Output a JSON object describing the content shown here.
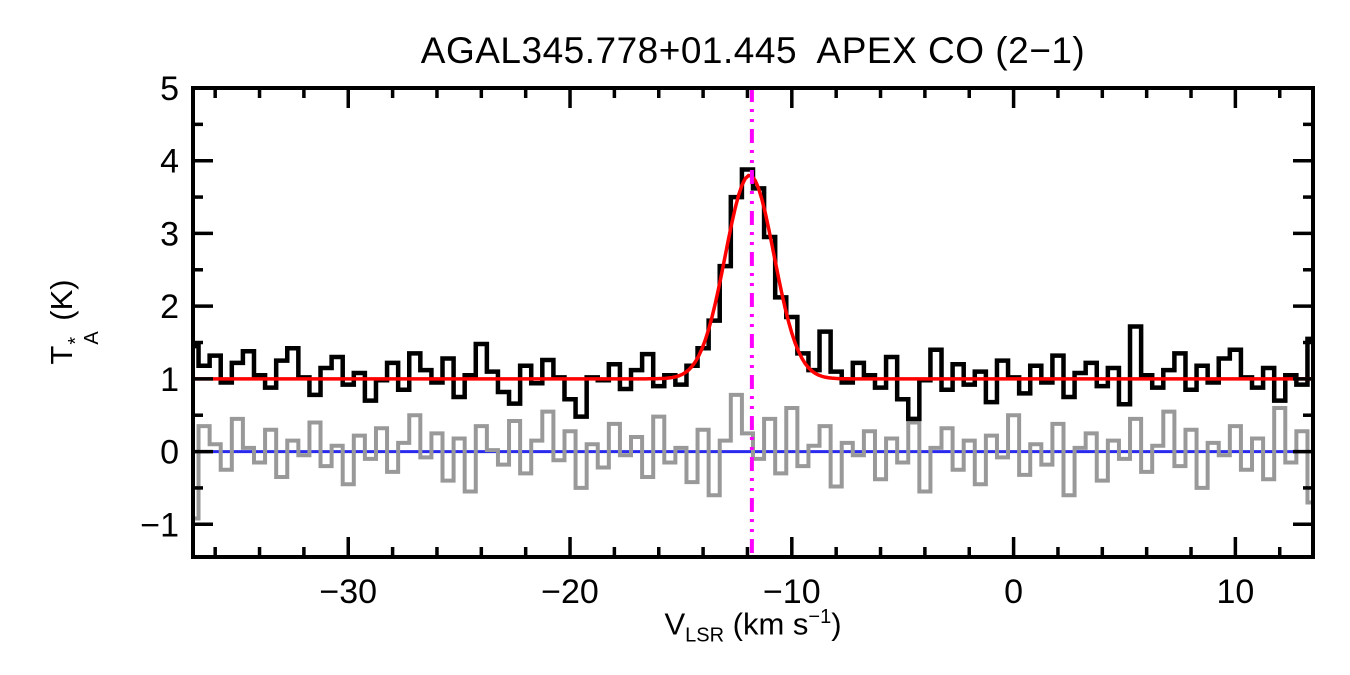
{
  "chart_data": {
    "type": "line",
    "title": "AGAL345.778+01.445  APEX CO (2−1)",
    "xlabel": "VLSR (km s−1)",
    "ylabel": "TA* (K)",
    "xlabel_parts": {
      "pre": "V",
      "sub": "LSR",
      "mid": " (km s",
      "sup": "−1",
      "post": ")"
    },
    "ylabel_parts": {
      "pre": "T",
      "sup": "*",
      "sub": "A",
      "post": " (K)"
    },
    "x_range": [
      -37,
      13.5
    ],
    "y_range": [
      -1.45,
      5
    ],
    "grid": false,
    "legend": false,
    "x_ticks": [
      {
        "value": -30,
        "label": "−30"
      },
      {
        "value": -20,
        "label": "−20"
      },
      {
        "value": -10,
        "label": "−10"
      },
      {
        "value": 0,
        "label": "0"
      },
      {
        "value": 10,
        "label": "10"
      }
    ],
    "y_ticks": [
      {
        "value": -1,
        "label": "−1"
      },
      {
        "value": 0,
        "label": "0"
      },
      {
        "value": 1,
        "label": "1"
      },
      {
        "value": 2,
        "label": "2"
      },
      {
        "value": 3,
        "label": "3"
      },
      {
        "value": 4,
        "label": "4"
      },
      {
        "value": 5,
        "label": "5"
      }
    ],
    "x_minor_step": 2,
    "y_minor_step": 0.5,
    "spectrum": {
      "name": "observed-spectrum",
      "color": "#000000",
      "x_start": -37,
      "x_step": 0.5,
      "values": [
        1.45,
        1.18,
        1.32,
        0.95,
        1.22,
        1.38,
        1.05,
        0.88,
        1.25,
        1.42,
        1.02,
        0.78,
        1.15,
        1.3,
        0.92,
        1.08,
        0.7,
        0.98,
        1.22,
        0.85,
        1.35,
        1.12,
        0.95,
        1.28,
        0.75,
        1.05,
        1.48,
        1.1,
        0.82,
        0.66,
        1.18,
        0.94,
        1.26,
        1.02,
        0.72,
        0.48,
        1.02,
        0.98,
        1.2,
        0.86,
        1.12,
        1.34,
        0.9,
        1.05,
        0.92,
        1.18,
        1.42,
        1.8,
        2.55,
        3.5,
        3.88,
        3.62,
        2.95,
        2.12,
        1.85,
        1.35,
        1.12,
        1.65,
        1.1,
        0.95,
        1.22,
        1.05,
        0.88,
        1.3,
        0.72,
        0.45,
        0.98,
        1.4,
        0.85,
        1.2,
        0.92,
        1.1,
        0.68,
        1.25,
        1.02,
        0.8,
        1.18,
        0.95,
        1.32,
        0.75,
        1.08,
        1.22,
        0.9,
        1.15,
        0.65,
        1.72,
        1.05,
        0.88,
        1.12,
        1.35,
        0.85,
        1.18,
        0.95,
        1.28,
        1.4,
        1.02,
        0.88,
        1.15,
        0.7,
        1.05,
        0.92,
        1.55
      ]
    },
    "residual": {
      "name": "residual-spectrum",
      "color": "#999999",
      "x_start": -37,
      "x_step": 0.5,
      "values": [
        -0.92,
        0.35,
        0.1,
        -0.25,
        0.45,
        0.05,
        -0.15,
        0.3,
        -0.35,
        0.15,
        -0.05,
        0.4,
        -0.2,
        0.08,
        -0.45,
        0.22,
        -0.1,
        0.32,
        -0.28,
        0.12,
        0.5,
        -0.08,
        0.25,
        -0.4,
        0.18,
        -0.55,
        0.35,
        0.02,
        -0.18,
        0.42,
        -0.3,
        0.15,
        0.55,
        -0.12,
        0.28,
        -0.5,
        0.1,
        -0.22,
        0.38,
        -0.05,
        0.2,
        -0.35,
        0.48,
        -0.15,
        0.05,
        -0.42,
        0.3,
        -0.6,
        0.15,
        0.78,
        0.25,
        -0.1,
        0.45,
        -0.3,
        0.6,
        -0.2,
        0.08,
        0.35,
        -0.48,
        0.12,
        -0.05,
        0.28,
        -0.38,
        0.18,
        -0.15,
        0.4,
        -0.55,
        0.05,
        0.32,
        -0.25,
        0.15,
        -0.45,
        0.22,
        -0.08,
        0.5,
        -0.32,
        0.1,
        -0.18,
        0.38,
        -0.6,
        0.05,
        0.25,
        -0.4,
        0.15,
        -0.1,
        0.45,
        -0.28,
        0.08,
        0.55,
        -0.2,
        0.3,
        -0.5,
        0.12,
        -0.05,
        0.35,
        -0.25,
        0.18,
        -0.38,
        0.6,
        -0.15,
        0.28,
        -0.7
      ]
    },
    "fit": {
      "name": "gaussian-fit",
      "color": "#ff0000",
      "baseline": 1.0,
      "amplitude": 2.8,
      "center": -11.9,
      "sigma": 1.1
    },
    "baseline_line": {
      "y": 0,
      "color": "#2a2aee"
    },
    "center_line": {
      "x": -11.8,
      "color": "#ff00ff",
      "style": "dash-dot"
    }
  }
}
